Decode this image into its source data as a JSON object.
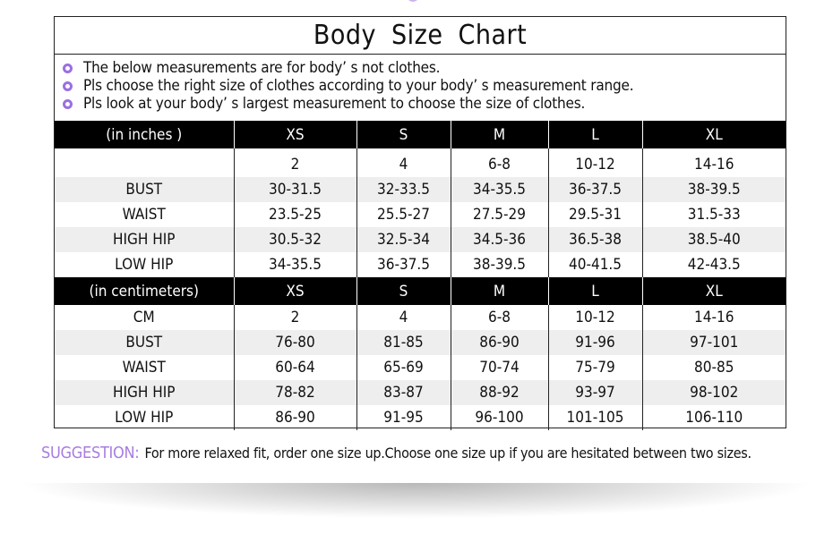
{
  "title": "Body  Size  Chart",
  "notes": [
    "The below measurements are for  body’ s not clothes.",
    "Pls choose the right size of clothes according to your body’ s  measurement range.",
    "Pls look  at your body’ s  largest measurement to choose the size of clothes."
  ],
  "inches": {
    "header": [
      "(in  inches )",
      "XS",
      "S",
      "M",
      "L",
      "XL"
    ],
    "rows": [
      [
        "",
        "2",
        "4",
        "6-8",
        "10-12",
        "14-16"
      ],
      [
        "BUST",
        "30-31.5",
        "32-33.5",
        "34-35.5",
        "36-37.5",
        "38-39.5"
      ],
      [
        "WAIST",
        "23.5-25",
        "25.5-27",
        "27.5-29",
        "29.5-31",
        "31.5-33"
      ],
      [
        "HIGH HIP",
        "30.5-32",
        "32.5-34",
        "34.5-36",
        "36.5-38",
        "38.5-40"
      ],
      [
        "LOW HIP",
        "34-35.5",
        "36-37.5",
        "38-39.5",
        "40-41.5",
        "42-43.5"
      ]
    ]
  },
  "cm": {
    "header": [
      "(in centimeters)",
      "XS",
      "S",
      "M",
      "L",
      "XL"
    ],
    "rows": [
      [
        "CM",
        "2",
        "4",
        "6-8",
        "10-12",
        "14-16"
      ],
      [
        "BUST",
        "76-80",
        "81-85",
        "86-90",
        "91-96",
        "97-101"
      ],
      [
        "WAIST",
        "60-64",
        "65-69",
        "70-74",
        "75-79",
        "80-85"
      ],
      [
        "HIGH HIP",
        "78-82",
        "83-87",
        "88-92",
        "93-97",
        "98-102"
      ],
      [
        "LOW HIP",
        "86-90",
        "91-95",
        "96-100",
        "101-105",
        "106-110"
      ]
    ]
  },
  "suggestion": {
    "label": "SUGGESTION:",
    "text": "For more relaxed fit, order one size up.Choose one size up if you are hesitated between two sizes."
  },
  "colors": {
    "accent": "#a77de0",
    "header_bg": "#000000",
    "stripe": "#eeeeee"
  }
}
